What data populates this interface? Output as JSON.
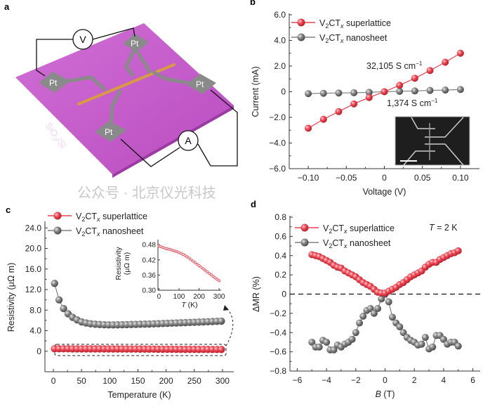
{
  "colors": {
    "superlattice": "#e8404c",
    "nanosheet": "#808080",
    "substrate": "#c35bc9",
    "pad": "#8a8a8a",
    "nanowire": "#d99a45"
  },
  "panel_a": {
    "label": "a",
    "voltmeter": "V",
    "ammeter": "A",
    "pads": [
      "Pt",
      "Pt",
      "Pt",
      "Pt"
    ],
    "substrate_label": {
      "pre": "SiO",
      "sub": "2",
      "post": "/Si"
    }
  },
  "legend": {
    "superlattice": {
      "pre": "V",
      "sub": "2",
      "mid": "CT",
      "subi": "x",
      "post": " superlattice"
    },
    "nanosheet": {
      "pre": "V",
      "sub": "2",
      "mid": "CT",
      "subi": "x",
      "post": " nanosheet"
    }
  },
  "watermark": "公众号 · 北京仪光科技",
  "chart_data": [
    {
      "id": "b",
      "type": "line",
      "label": "b",
      "xlabel": "Voltage (V)",
      "ylabel": "Current (mA)",
      "xlim": [
        -0.125,
        0.125
      ],
      "ylim": [
        -6,
        6
      ],
      "xticks": [
        -0.1,
        -0.05,
        0,
        0.05,
        0.1
      ],
      "xtick_labels": [
        "−0.10",
        "−0.05",
        "0",
        "0.05",
        "0.10"
      ],
      "yticks": [
        -6,
        -4,
        -2,
        0,
        2,
        4,
        6
      ],
      "ytick_labels": [
        "−6.0",
        "−4.0",
        "−2.0",
        "0",
        "2.0",
        "4.0",
        "6.0"
      ],
      "x": [
        -0.1,
        -0.08,
        -0.06,
        -0.04,
        -0.02,
        0,
        0.02,
        0.04,
        0.06,
        0.08,
        0.1
      ],
      "series": [
        {
          "name": "superlattice",
          "values": [
            -2.85,
            -2.15,
            -1.55,
            -0.95,
            -0.45,
            0,
            0.5,
            1.05,
            1.65,
            2.3,
            3.0
          ]
        },
        {
          "name": "nanosheet",
          "values": [
            -0.15,
            -0.12,
            -0.1,
            -0.08,
            -0.05,
            0,
            0.03,
            0.06,
            0.1,
            0.13,
            0.17
          ]
        }
      ],
      "annotations": [
        {
          "text": "32,105 S cm",
          "sup": "−1"
        },
        {
          "text": "1,374 S cm",
          "sup": "−1"
        }
      ],
      "inset": "SEM image of device with scale bar"
    },
    {
      "id": "c",
      "type": "line",
      "label": "c",
      "xlabel": "Temperature (K)",
      "ylabel": "Resistivity (μΩ m)",
      "xlim": [
        -15,
        320
      ],
      "ylim": [
        -4,
        25
      ],
      "xticks": [
        0,
        50,
        100,
        150,
        200,
        250,
        300
      ],
      "xtick_labels": [
        "0",
        "50",
        "100",
        "150",
        "200",
        "250",
        "300"
      ],
      "yticks": [
        0,
        4,
        8,
        12,
        16,
        20,
        24
      ],
      "ytick_labels": [
        "0",
        "4.0",
        "8.0",
        "12.0",
        "16.0",
        "20.0",
        "24.0"
      ],
      "x": [
        2,
        10,
        18,
        26,
        34,
        42,
        50,
        58,
        66,
        74,
        82,
        90,
        98,
        106,
        114,
        122,
        130,
        138,
        146,
        154,
        162,
        170,
        178,
        186,
        194,
        202,
        210,
        218,
        226,
        234,
        242,
        250,
        258,
        266,
        274,
        282,
        290,
        298
      ],
      "series": [
        {
          "name": "superlattice",
          "values": [
            0.47,
            0.47,
            0.47,
            0.47,
            0.46,
            0.46,
            0.46,
            0.46,
            0.45,
            0.45,
            0.45,
            0.45,
            0.44,
            0.44,
            0.44,
            0.43,
            0.43,
            0.42,
            0.42,
            0.41,
            0.41,
            0.4,
            0.4,
            0.39,
            0.39,
            0.38,
            0.38,
            0.37,
            0.37,
            0.36,
            0.36,
            0.36,
            0.35,
            0.35,
            0.35,
            0.34,
            0.34,
            0.34
          ]
        },
        {
          "name": "nanosheet",
          "values": [
            13.2,
            10.0,
            8.3,
            7.3,
            6.6,
            6.1,
            5.7,
            5.5,
            5.35,
            5.25,
            5.2,
            5.15,
            5.12,
            5.12,
            5.13,
            5.15,
            5.17,
            5.2,
            5.22,
            5.25,
            5.28,
            5.3,
            5.33,
            5.36,
            5.4,
            5.43,
            5.46,
            5.5,
            5.53,
            5.56,
            5.6,
            5.63,
            5.66,
            5.7,
            5.74,
            5.78,
            5.82,
            5.86
          ]
        }
      ],
      "inset": {
        "xlabel": "T (K)",
        "ylabel": "Resistivity",
        "ylabel2": "(μΩ m)",
        "xlim": [
          -5,
          310
        ],
        "ylim": [
          0.3,
          0.5
        ],
        "xticks": [
          0,
          100,
          200,
          300
        ],
        "xtick_labels": [
          "0",
          "100",
          "200",
          "300"
        ],
        "yticks": [
          0.3,
          0.36,
          0.42,
          0.48
        ],
        "ytick_labels": [
          "0.30",
          "0.36",
          "0.42",
          "0.48"
        ],
        "x": [
          0,
          10,
          20,
          30,
          40,
          50,
          60,
          70,
          80,
          90,
          100,
          110,
          120,
          130,
          140,
          150,
          160,
          170,
          180,
          190,
          200,
          210,
          220,
          230,
          240,
          250,
          260,
          270,
          280,
          290,
          300
        ],
        "values": [
          0.475,
          0.472,
          0.469,
          0.466,
          0.464,
          0.462,
          0.46,
          0.457,
          0.455,
          0.452,
          0.449,
          0.446,
          0.442,
          0.437,
          0.432,
          0.427,
          0.421,
          0.415,
          0.409,
          0.403,
          0.397,
          0.391,
          0.385,
          0.379,
          0.373,
          0.367,
          0.361,
          0.355,
          0.349,
          0.343,
          0.338
        ]
      }
    },
    {
      "id": "d",
      "type": "scatter",
      "label": "d",
      "xlabel": {
        "pre": "B",
        "post": " (T)"
      },
      "ylabel": "ΔMR (%)",
      "xlim": [
        -6.5,
        6.5
      ],
      "ylim": [
        -0.8,
        0.8
      ],
      "xticks": [
        -6,
        -4,
        -2,
        0,
        2,
        4,
        6
      ],
      "xtick_labels": [
        "−6",
        "−4",
        "−2",
        "0",
        "2",
        "4",
        "6"
      ],
      "yticks": [
        -0.8,
        -0.6,
        -0.4,
        -0.2,
        0,
        0.2,
        0.4,
        0.6,
        0.8
      ],
      "ytick_labels": [
        "−0.8",
        "−0.6",
        "−0.4",
        "−0.2",
        "0",
        "0.2",
        "0.4",
        "0.6",
        "0.8"
      ],
      "annotation": {
        "pre": "T",
        "post": " = 2 K"
      },
      "x": [
        -5,
        -4.75,
        -4.5,
        -4.25,
        -4,
        -3.75,
        -3.5,
        -3.25,
        -3,
        -2.75,
        -2.5,
        -2.25,
        -2,
        -1.75,
        -1.5,
        -1.25,
        -1,
        -0.75,
        -0.5,
        -0.25,
        0,
        0.25,
        0.5,
        0.75,
        1,
        1.25,
        1.5,
        1.75,
        2,
        2.25,
        2.5,
        2.75,
        3,
        3.25,
        3.5,
        3.75,
        4,
        4.25,
        4.5,
        4.75,
        5
      ],
      "series": [
        {
          "name": "superlattice",
          "values": [
            0.41,
            0.4,
            0.39,
            0.37,
            0.35,
            0.33,
            0.3,
            0.28,
            0.27,
            0.24,
            0.22,
            0.2,
            0.18,
            0.15,
            0.12,
            0.1,
            0.08,
            0.05,
            0.02,
            0.01,
            0.01,
            0.03,
            0.05,
            0.07,
            0.1,
            0.12,
            0.15,
            0.18,
            0.2,
            0.22,
            0.24,
            0.28,
            0.31,
            0.33,
            0.33,
            0.36,
            0.38,
            0.4,
            0.42,
            0.43,
            0.45
          ]
        },
        {
          "name": "nanosheet",
          "values": [
            -0.5,
            -0.55,
            -0.55,
            -0.48,
            -0.5,
            -0.58,
            -0.58,
            -0.53,
            -0.55,
            -0.52,
            -0.5,
            -0.47,
            -0.4,
            -0.3,
            -0.23,
            -0.17,
            -0.15,
            -0.2,
            -0.15,
            -0.05,
            0,
            -0.08,
            -0.24,
            -0.3,
            -0.34,
            -0.4,
            -0.45,
            -0.48,
            -0.5,
            -0.53,
            -0.52,
            -0.45,
            -0.57,
            -0.55,
            -0.43,
            -0.43,
            -0.47,
            -0.52,
            -0.5,
            -0.5,
            -0.54
          ]
        }
      ]
    }
  ]
}
